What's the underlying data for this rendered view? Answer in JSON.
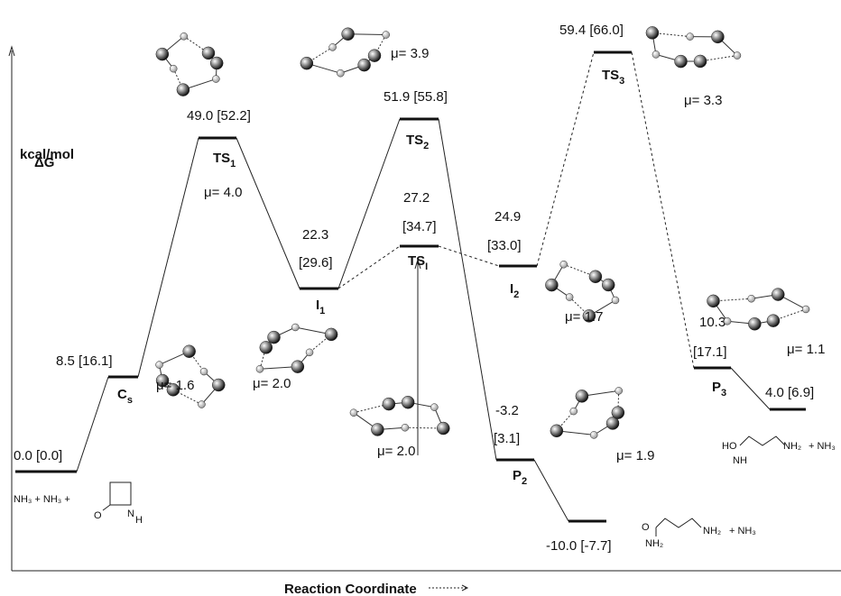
{
  "axis": {
    "y_label": "ΔG",
    "unit": "kcal/mol",
    "x_label": "Reaction Coordinate"
  },
  "levels": [
    {
      "energy": [
        "0.0  [0.0]"
      ]
    },
    {
      "energy": [
        "8.5 [16.1]"
      ],
      "name": {
        "main": "C",
        "sub": "s"
      }
    },
    {
      "energy": [
        "49.0 [52.2]"
      ],
      "name": {
        "main": "TS",
        "sub": "1"
      }
    },
    {
      "energy": [
        "22.3",
        "[29.6]"
      ],
      "name": {
        "main": "I",
        "sub": "1"
      }
    },
    {
      "energy": [
        "51.9  [55.8]"
      ],
      "name": {
        "main": "TS",
        "sub": "2"
      }
    },
    {
      "energy": [
        "27.2",
        "[34.7]"
      ],
      "name": {
        "main": "TS",
        "sub": "I"
      }
    },
    {
      "energy": [
        "24.9",
        "[33.0]"
      ],
      "name": {
        "main": "I",
        "sub": "2"
      }
    },
    {
      "energy": [
        "59.4  [66.0]"
      ],
      "name": {
        "main": "TS",
        "sub": "3"
      }
    },
    {
      "energy": [
        "-3.2",
        "[3.1]"
      ],
      "name": {
        "main": "P",
        "sub": "2"
      }
    },
    {
      "energy": [
        "-10.0  [-7.7]"
      ]
    },
    {
      "energy": [
        "10.3",
        "[17.1]"
      ],
      "name": {
        "main": "P",
        "sub": "3"
      }
    },
    {
      "energy": [
        "4.0  [6.9]"
      ]
    }
  ],
  "dipoles": [
    "μ= 1.6",
    "μ= 2.0",
    "μ= 4.0",
    "μ= 3.9",
    "μ= 2.0",
    "μ= 1.7",
    "μ= 3.3",
    "μ= 1.9",
    "μ= 1.1"
  ],
  "species": {
    "reactants": "NH₃ + NH₃ +",
    "lactam_o": "O",
    "lactam_n": "N",
    "lactam_h": "H",
    "p2_o": "O",
    "p2_nh2a": "NH₂",
    "p2_nh2b": "NH₂",
    "p2_nh3": "+  NH₃",
    "p3_ho": "HO",
    "p3_nh": "NH",
    "p3_nh2": "NH₂",
    "p3_nh3": "+  NH₃"
  }
}
